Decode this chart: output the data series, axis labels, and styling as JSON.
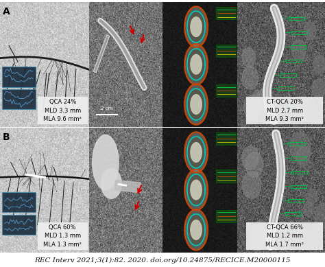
{
  "citation": "REC Interv 2021;3(1):82. 2020. doi.org/10.24875/RECICE.M20000115",
  "panel_A_label": "A",
  "panel_B_label": "B",
  "qca_A_text": "QCA 24%\nMLD 3.3 mm\nMLA 9.6 mm²",
  "ctqca_A_text": "CT-QCA 20%\nMLD 2.7 mm\nMLA 9.3 mm²",
  "qca_B_text": "QCA 60%\nMLD 1.3 mm\nMLA 1.3 mm²",
  "ctqca_B_text": "CT-QCA 66%\nMLD 1.2 mm\nMLA 1.7 mm²",
  "arrow_color": "#cc0000",
  "teal_color": "#00ccbb",
  "orange_color": "#cc4400",
  "green_color": "#00bb44",
  "citation_fontsize": 7.5,
  "label_fontsize": 10,
  "annotation_fontsize": 6.0,
  "scale_bar_text": "2 cm",
  "fig_width": 4.74,
  "fig_height": 3.89,
  "dpi": 100
}
